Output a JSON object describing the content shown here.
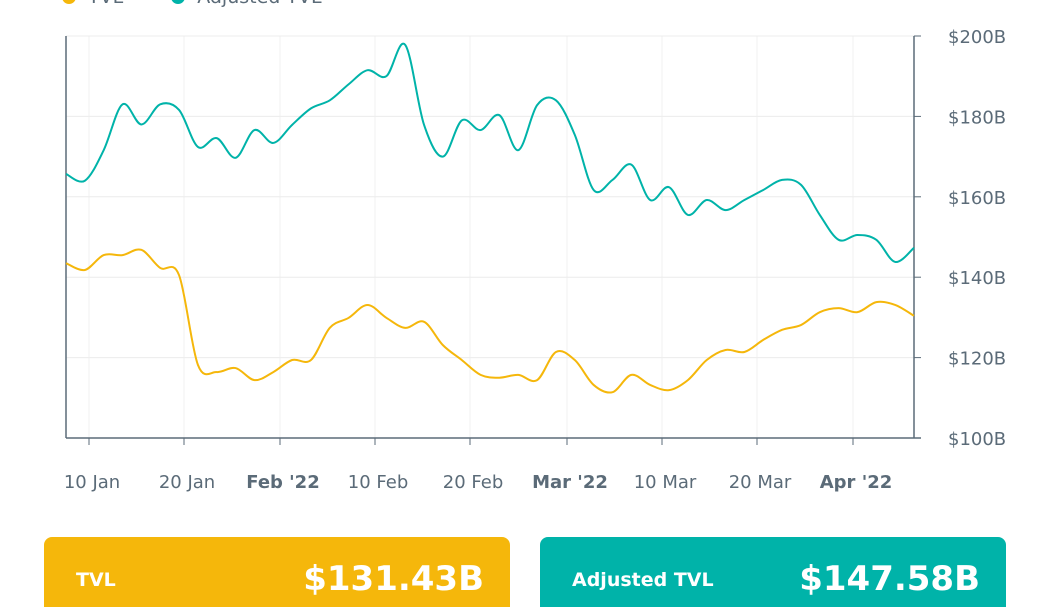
{
  "legend": [
    {
      "label": "TVL",
      "color": "#F5B70B"
    },
    {
      "label": "Adjusted TVL",
      "color": "#00B3A9"
    }
  ],
  "chart_data": {
    "type": "line",
    "y_axis": {
      "position": "right",
      "min": 100,
      "max": 200,
      "ticks": [
        "$100B",
        "$120B",
        "$140B",
        "$160B",
        "$180B",
        "$200B"
      ],
      "tick_values": [
        100,
        120,
        140,
        160,
        180,
        200
      ],
      "grid": true
    },
    "x_axis": {
      "ticks": [
        "10 Jan",
        "20 Jan",
        "Feb '22",
        "10 Feb",
        "20 Feb",
        "Mar '22",
        "10 Mar",
        "20 Mar",
        "Apr '22"
      ],
      "bold_ticks": [
        "Feb '22",
        "Mar '22",
        "Apr '22"
      ]
    },
    "series": [
      {
        "name": "TVL",
        "color": "#F5B70B",
        "values": [
          143.5,
          141.8,
          145.5,
          145.5,
          146.8,
          142.3,
          140.5,
          118.2,
          116.4,
          117.4,
          114.4,
          116.4,
          119.4,
          119.4,
          127.4,
          129.9,
          133.1,
          129.9,
          127.4,
          128.9,
          123.1,
          119.4,
          115.7,
          115,
          115.7,
          114.4,
          121.4,
          119.4,
          113.2,
          111.4,
          115.7,
          113.2,
          111.9,
          114.4,
          119.4,
          121.9,
          121.4,
          124.4,
          126.9,
          128.1,
          131.3,
          132.3,
          131.3,
          133.8,
          133.1,
          130.4
        ]
      },
      {
        "name": "Adjusted TVL",
        "color": "#00B3A9",
        "values": [
          165.7,
          164,
          171.6,
          183,
          178,
          183,
          181.6,
          172.4,
          174.6,
          169.7,
          176.6,
          173.4,
          177.9,
          182,
          184,
          188,
          191.5,
          190,
          197.8,
          177.9,
          170,
          179,
          176.6,
          180.3,
          171.6,
          182.8,
          184,
          175.4,
          161.7,
          164.2,
          168,
          159.2,
          162.4,
          155.5,
          159.2,
          156.7,
          159.2,
          161.7,
          164.2,
          163,
          155.5,
          149.3,
          150.5,
          149.3,
          143.8,
          147.3
        ]
      }
    ]
  },
  "cards": [
    {
      "label": "TVL",
      "value": "$131.43B",
      "color": "#F5B70B"
    },
    {
      "label": "Adjusted TVL",
      "value": "$147.58B",
      "color": "#00B3A9"
    }
  ]
}
